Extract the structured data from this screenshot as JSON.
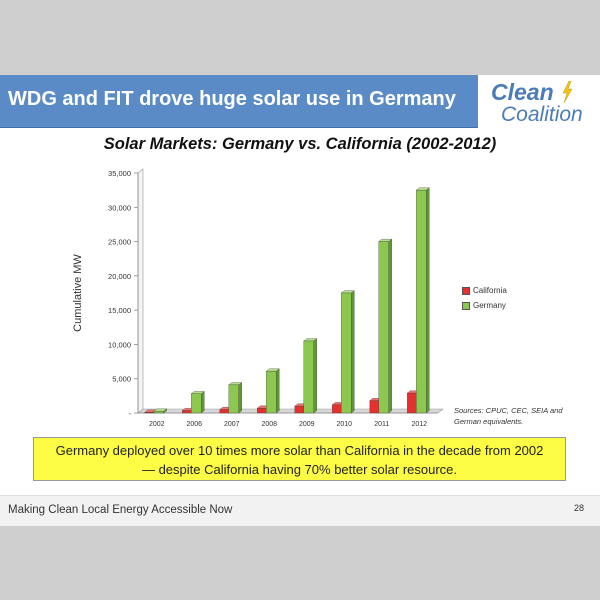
{
  "slide": {
    "title": "WDG and FIT drove huge solar use in Germany",
    "logo": {
      "line1": "Clean",
      "line2": "Coalition"
    },
    "callout_line1": "Germany deployed over 10 times more solar than California in the decade from 2002",
    "callout_line2": "— despite California having 70% better solar resource.",
    "footer": "Making Clean Local Energy Accessible Now",
    "page_number": "28",
    "sources_line1": "Sources:  CPUC, CEC, SEIA and",
    "sources_line2": "German equivalents."
  },
  "colors": {
    "title_bar": "#5b8bc7",
    "california": "#e63030",
    "germany": "#8cc850",
    "callout": "#fcfc44"
  },
  "chart_data": {
    "type": "bar",
    "title": "Solar Markets: Germany vs. California (2002-2012)",
    "ylabel": "Cumulative MW",
    "xlabel": "",
    "categories": [
      "2002",
      "2006",
      "2007",
      "2008",
      "2009",
      "2010",
      "2011",
      "2012"
    ],
    "series": [
      {
        "name": "California",
        "values": [
          100,
          350,
          500,
          700,
          1000,
          1200,
          1800,
          2900
        ]
      },
      {
        "name": "Germany",
        "values": [
          250,
          2800,
          4100,
          6100,
          10500,
          17500,
          25000,
          32500
        ]
      }
    ],
    "ylim": [
      0,
      35000
    ],
    "yticks": [
      0,
      5000,
      10000,
      15000,
      20000,
      25000,
      30000,
      35000
    ],
    "ytick_labels": [
      "-",
      "5,000",
      "10,000",
      "15,000",
      "20,000",
      "25,000",
      "30,000",
      "35,000"
    ],
    "legend_position": "right",
    "style": "3d-bars"
  }
}
